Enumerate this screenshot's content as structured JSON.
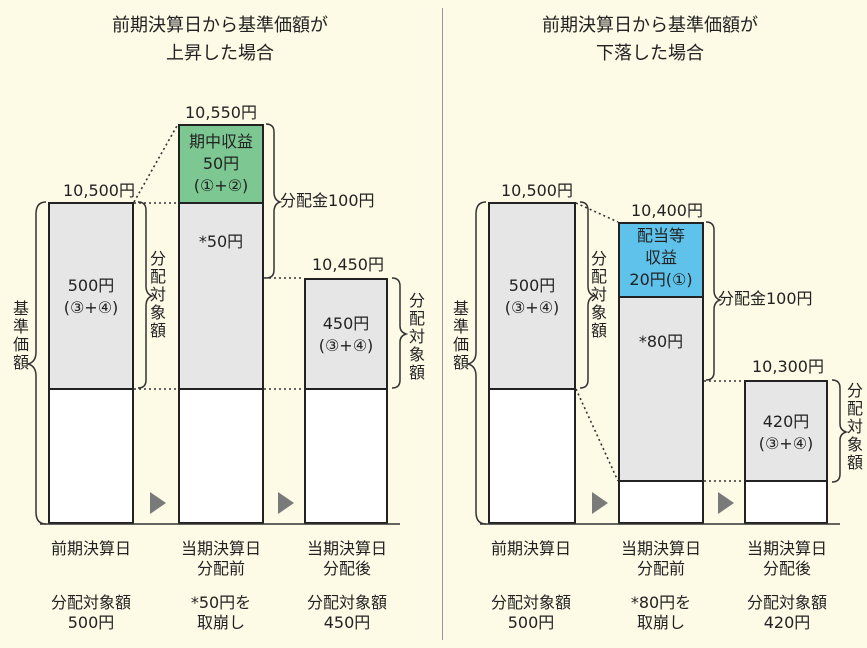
{
  "left": {
    "title_line1": "前期決算日から基準価額が",
    "title_line2": "上昇した場合",
    "nav_label": "基準価額",
    "bar1": {
      "top_value": "10,500円",
      "gray_amount": "500円",
      "gray_sub": "(③+④)",
      "side_label": "分配対象額"
    },
    "bar2": {
      "top_value": "10,550円",
      "green_line1": "期中収益",
      "green_line2": "50円",
      "green_line3": "(①+②)",
      "gray_text": "*50円",
      "brace_label": "分配金100円"
    },
    "bar3": {
      "top_value": "10,450円",
      "gray_amount": "450円",
      "gray_sub": "(③+④)",
      "side_label": "分配対象額"
    },
    "xlabels": [
      {
        "line1": "前期決算日",
        "line2": ""
      },
      {
        "line1": "当期決算日",
        "line2": "分配前"
      },
      {
        "line1": "当期決算日",
        "line2": "分配後"
      }
    ],
    "footers": [
      {
        "line1": "分配対象額",
        "line2": "500円"
      },
      {
        "line1": "*50円を",
        "line2": "取崩し"
      },
      {
        "line1": "分配対象額",
        "line2": "450円"
      }
    ]
  },
  "right": {
    "title_line1": "前期決算日から基準価額が",
    "title_line2": "下落した場合",
    "nav_label": "基準価額",
    "bar1": {
      "top_value": "10,500円",
      "gray_amount": "500円",
      "gray_sub": "(③+④)",
      "side_label": "分配対象額"
    },
    "bar2": {
      "top_value": "10,400円",
      "blue_line1": "配当等",
      "blue_line2": "収益",
      "blue_line3": "20円(①)",
      "gray_text": "*80円",
      "brace_label": "分配金100円"
    },
    "bar3": {
      "top_value": "10,300円",
      "gray_amount": "420円",
      "gray_sub": "(③+④)",
      "side_label": "分配対象額"
    },
    "xlabels": [
      {
        "line1": "前期決算日",
        "line2": ""
      },
      {
        "line1": "当期決算日",
        "line2": "分配前"
      },
      {
        "line1": "当期決算日",
        "line2": "分配後"
      }
    ],
    "footers": [
      {
        "line1": "分配対象額",
        "line2": "500円"
      },
      {
        "line1": "*80円を",
        "line2": "取崩し"
      },
      {
        "line1": "分配対象額",
        "line2": "420円"
      }
    ]
  },
  "colors": {
    "green": "#7dc892",
    "blue": "#5ec2ea",
    "gray": "#e6e6e6",
    "arrow": "#7a7a7a"
  }
}
